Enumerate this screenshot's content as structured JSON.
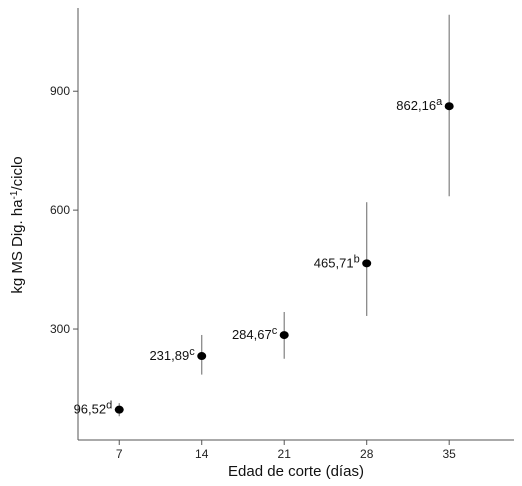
{
  "chart_data": {
    "type": "scatter",
    "title": "",
    "xlabel": "Edad de corte (días)",
    "ylabel_parts": {
      "main": "kg MS Dig. ha",
      "sup": "-1",
      "tail": "/ciclo"
    },
    "x_ticks": [
      "7",
      "14",
      "21",
      "28",
      "35"
    ],
    "y_ticks": [
      "300",
      "600",
      "900"
    ],
    "xlim": [
      3.5,
      40.5
    ],
    "ylim": [
      20,
      1110
    ],
    "grid": false,
    "legend": "none",
    "marker_color": "#000000",
    "errorbar_color": "#808080",
    "points": [
      {
        "x": 7,
        "y": 96.52,
        "label": "96,52",
        "letter": "d",
        "low": 80,
        "high": 113
      },
      {
        "x": 14,
        "y": 231.89,
        "label": "231,89",
        "letter": "c",
        "low": 185,
        "high": 285
      },
      {
        "x": 21,
        "y": 284.67,
        "label": "284,67",
        "letter": "c",
        "low": 225,
        "high": 343
      },
      {
        "x": 28,
        "y": 465.71,
        "label": "465,71",
        "letter": "b",
        "low": 333,
        "high": 620
      },
      {
        "x": 35,
        "y": 862.16,
        "label": "862,16",
        "letter": "a",
        "low": 635,
        "high": 1093
      }
    ]
  }
}
